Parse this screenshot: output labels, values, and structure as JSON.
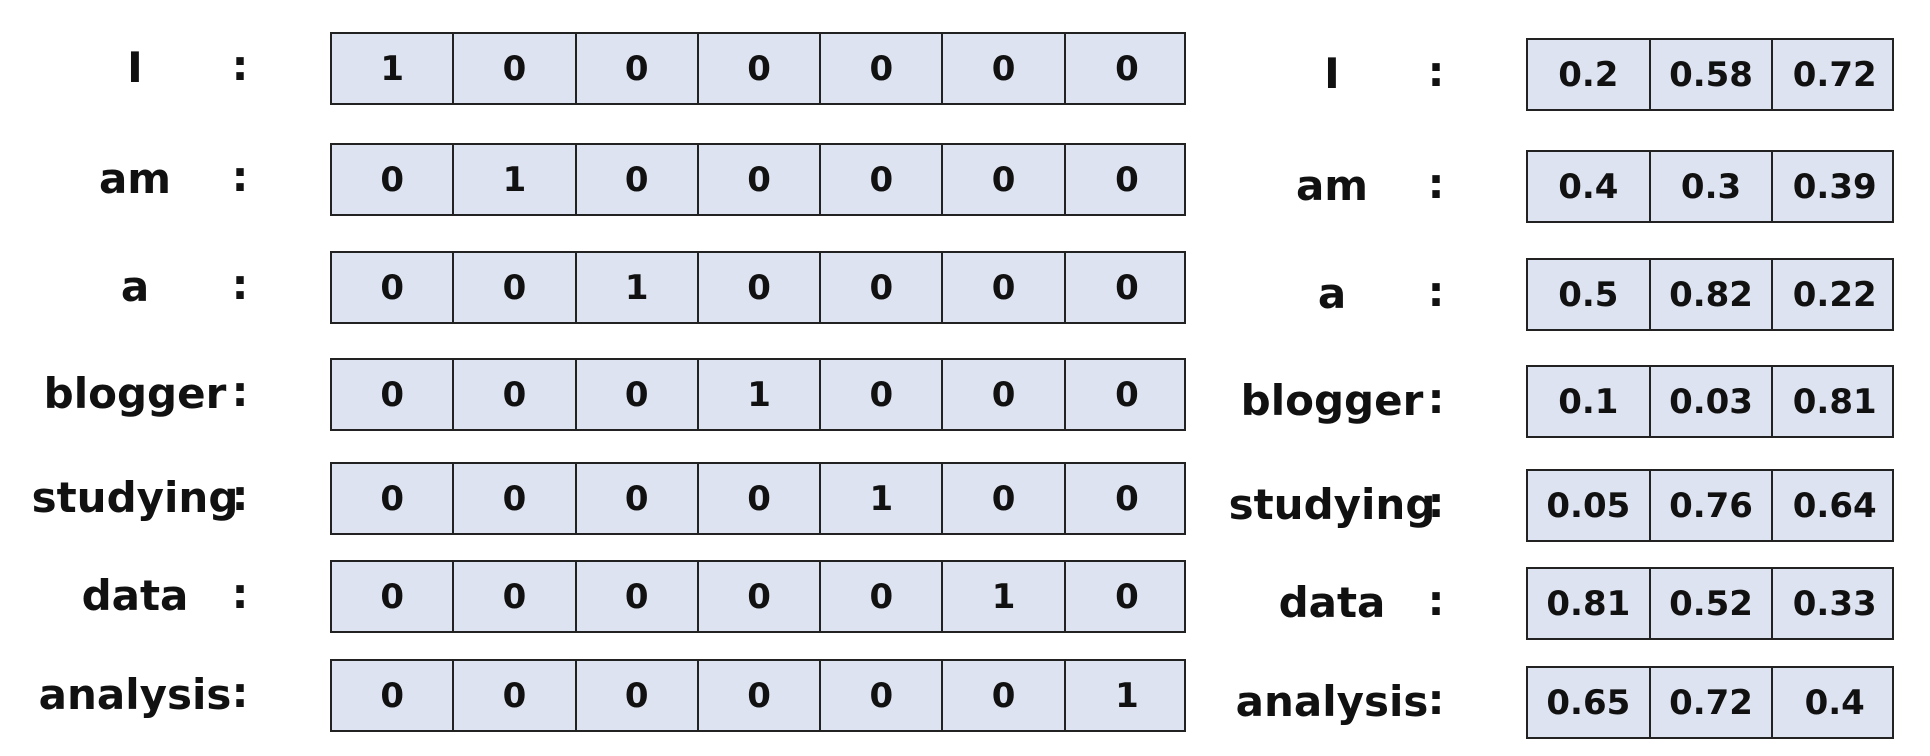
{
  "separator": ":",
  "one_hot": [
    {
      "word": "I",
      "vector": [
        "1",
        "0",
        "0",
        "0",
        "0",
        "0",
        "0"
      ]
    },
    {
      "word": "am",
      "vector": [
        "0",
        "1",
        "0",
        "0",
        "0",
        "0",
        "0"
      ]
    },
    {
      "word": "a",
      "vector": [
        "0",
        "0",
        "1",
        "0",
        "0",
        "0",
        "0"
      ]
    },
    {
      "word": "blogger",
      "vector": [
        "0",
        "0",
        "0",
        "1",
        "0",
        "0",
        "0"
      ]
    },
    {
      "word": "studying",
      "vector": [
        "0",
        "0",
        "0",
        "0",
        "1",
        "0",
        "0"
      ]
    },
    {
      "word": "data",
      "vector": [
        "0",
        "0",
        "0",
        "0",
        "0",
        "1",
        "0"
      ]
    },
    {
      "word": "analysis",
      "vector": [
        "0",
        "0",
        "0",
        "0",
        "0",
        "0",
        "1"
      ]
    }
  ],
  "embedding": [
    {
      "word": "I",
      "vector": [
        "0.2",
        "0.58",
        "0.72"
      ]
    },
    {
      "word": "am",
      "vector": [
        "0.4",
        "0.3",
        "0.39"
      ]
    },
    {
      "word": "a",
      "vector": [
        "0.5",
        "0.82",
        "0.22"
      ]
    },
    {
      "word": "blogger",
      "vector": [
        "0.1",
        "0.03",
        "0.81"
      ]
    },
    {
      "word": "studying",
      "vector": [
        "0.05",
        "0.76",
        "0.64"
      ]
    },
    {
      "word": "data",
      "vector": [
        "0.81",
        "0.52",
        "0.33"
      ]
    },
    {
      "word": "analysis",
      "vector": [
        "0.65",
        "0.72",
        "0.4"
      ]
    }
  ],
  "colors": {
    "cell_fill": "#dde3f0",
    "border": "#222222",
    "text": "#111111"
  }
}
